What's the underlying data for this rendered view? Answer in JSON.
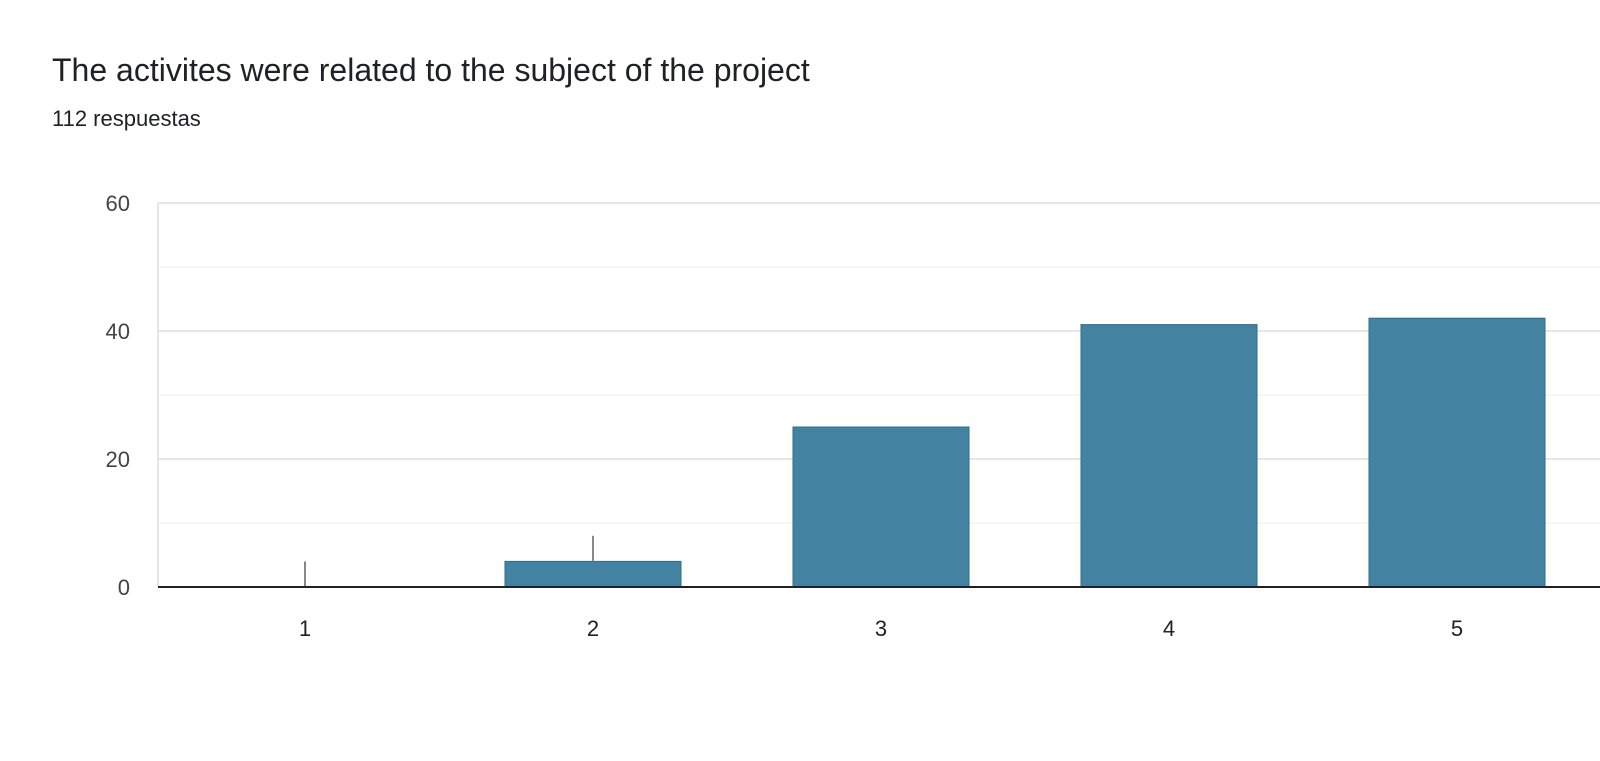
{
  "header": {
    "title": "The activites were related to the subject of the project",
    "responses": "112 respuestas"
  },
  "colors": {
    "bar": "#4382a1",
    "bar_stroke": "#2e6d8c",
    "grid_major": "#e6e6e6",
    "grid_minor": "#f3f3f3",
    "axis": "#222222",
    "error_bar": "#888888"
  },
  "chart_data": {
    "type": "bar",
    "title": "The activites were related to the subject of the project",
    "subtitle": "112 respuestas",
    "categories": [
      "1",
      "2",
      "3",
      "4",
      "5"
    ],
    "values": [
      0,
      4,
      25,
      41,
      42
    ],
    "error_upper": [
      4,
      8,
      null,
      null,
      null
    ],
    "ylim": [
      0,
      60
    ],
    "yticks": [
      0,
      20,
      40,
      60
    ],
    "grid": true,
    "legend": "none",
    "xlabel": "",
    "ylabel": ""
  }
}
